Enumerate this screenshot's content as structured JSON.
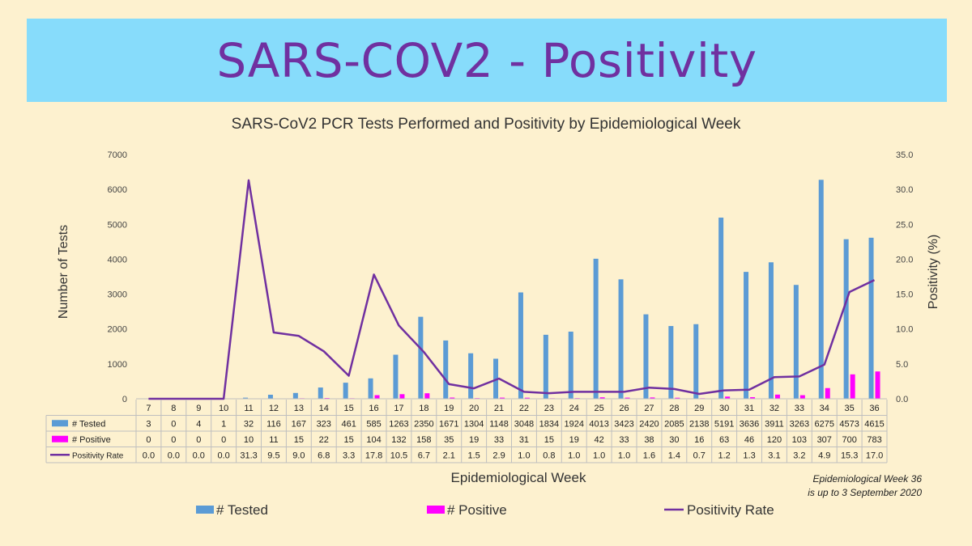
{
  "banner": {
    "title": "SARS-COV2 - Positivity"
  },
  "chart_data": {
    "type": "bar",
    "title": "SARS-CoV2  PCR Tests Performed and Positivity by Epidemiological Week",
    "xlabel": "Epidemiological Week",
    "ylabel": "Number of Tests",
    "y2label": "Positivity (%)",
    "ylim": [
      0,
      7000
    ],
    "y2lim": [
      0,
      35
    ],
    "yticks": [
      "0",
      "1000",
      "2000",
      "3000",
      "4000",
      "5000",
      "6000",
      "7000"
    ],
    "y2ticks": [
      "0.0",
      "5.0",
      "10.0",
      "15.0",
      "20.0",
      "25.0",
      "30.0",
      "35.0"
    ],
    "grid": false,
    "legend_position": "bottom",
    "categories": [
      "7",
      "8",
      "9",
      "10",
      "11",
      "12",
      "13",
      "14",
      "15",
      "16",
      "17",
      "18",
      "19",
      "20",
      "21",
      "22",
      "23",
      "24",
      "25",
      "26",
      "27",
      "28",
      "29",
      "30",
      "31",
      "32",
      "33",
      "34",
      "35",
      "36"
    ],
    "series": [
      {
        "name": "# Tested",
        "type": "bar",
        "axis": "left",
        "color": "#5b9bd5",
        "values": [
          3,
          0,
          4,
          1,
          32,
          116,
          167,
          323,
          461,
          585,
          1263,
          2350,
          1671,
          1304,
          1148,
          3048,
          1834,
          1924,
          4013,
          3423,
          2420,
          2085,
          2138,
          5191,
          3636,
          3911,
          3263,
          6275,
          4573,
          4615
        ]
      },
      {
        "name": "# Positive",
        "type": "bar",
        "axis": "left",
        "color": "#ff00ff",
        "values": [
          0,
          0,
          0,
          0,
          10,
          11,
          15,
          22,
          15,
          104,
          132,
          158,
          35,
          19,
          33,
          31,
          15,
          19,
          42,
          33,
          38,
          30,
          16,
          63,
          46,
          120,
          103,
          307,
          700,
          783
        ]
      },
      {
        "name": "Positivity Rate",
        "type": "line",
        "axis": "right",
        "color": "#7030a0",
        "values": [
          "0.0",
          "0.0",
          "0.0",
          "0.0",
          "31.3",
          "9.5",
          "9.0",
          "6.8",
          "3.3",
          "17.8",
          "10.5",
          "6.7",
          "2.1",
          "1.5",
          "2.9",
          "1.0",
          "0.8",
          "1.0",
          "1.0",
          "1.0",
          "1.6",
          "1.4",
          "0.7",
          "1.2",
          "1.3",
          "3.1",
          "3.2",
          "4.9",
          "15.3",
          "17.0"
        ]
      }
    ],
    "legend": [
      "# Tested",
      "# Positive",
      "Positivity Rate"
    ]
  },
  "footnote": {
    "line1": "Epidemiological Week 36",
    "line2": "is up to 3 September 2020"
  }
}
